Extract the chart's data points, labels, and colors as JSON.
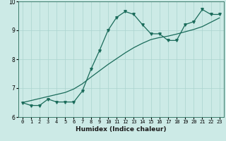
{
  "title": "",
  "xlabel": "Humidex (Indice chaleur)",
  "ylabel": "",
  "bg_color": "#cceae6",
  "line_color": "#1a6b5a",
  "grid_color": "#aad4ce",
  "x_data": [
    0,
    1,
    2,
    3,
    4,
    5,
    6,
    7,
    8,
    9,
    10,
    11,
    12,
    13,
    14,
    15,
    16,
    17,
    18,
    19,
    20,
    21,
    22,
    23
  ],
  "y_curve": [
    6.5,
    6.4,
    6.4,
    6.62,
    6.52,
    6.52,
    6.52,
    6.9,
    7.65,
    8.3,
    9.0,
    9.45,
    9.65,
    9.55,
    9.2,
    8.88,
    8.88,
    8.65,
    8.65,
    9.2,
    9.3,
    9.72,
    9.55,
    9.55
  ],
  "y_line": [
    6.5,
    6.57,
    6.64,
    6.71,
    6.78,
    6.85,
    6.97,
    7.15,
    7.38,
    7.6,
    7.82,
    8.02,
    8.22,
    8.4,
    8.55,
    8.68,
    8.75,
    8.8,
    8.87,
    8.95,
    9.03,
    9.13,
    9.28,
    9.43
  ],
  "ylim": [
    6.0,
    10.0
  ],
  "xlim": [
    -0.5,
    23.5
  ],
  "yticks": [
    6,
    7,
    8,
    9,
    10
  ],
  "xticks": [
    0,
    1,
    2,
    3,
    4,
    5,
    6,
    7,
    8,
    9,
    10,
    11,
    12,
    13,
    14,
    15,
    16,
    17,
    18,
    19,
    20,
    21,
    22,
    23
  ]
}
